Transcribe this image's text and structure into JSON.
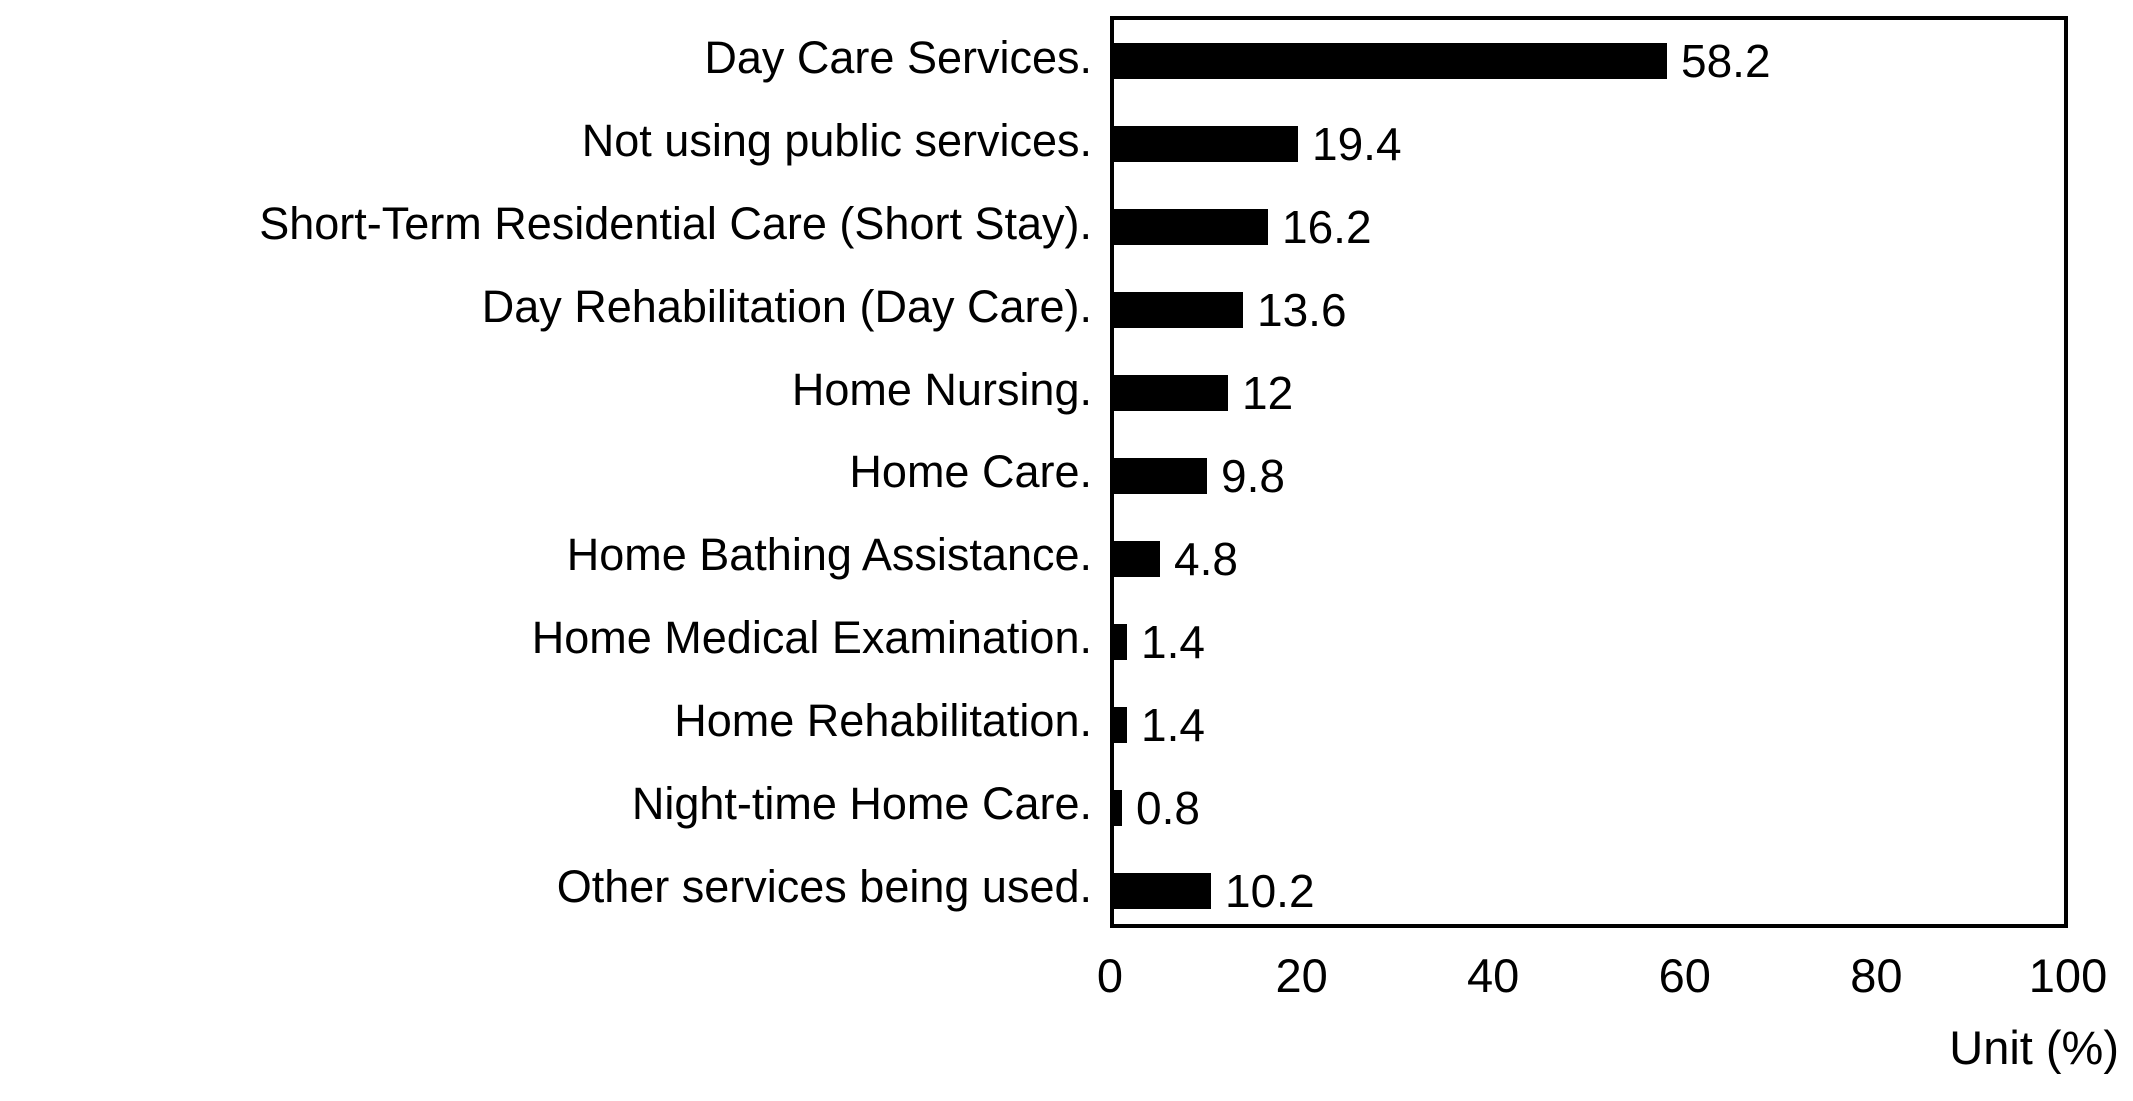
{
  "chart_data": {
    "type": "bar",
    "orientation": "horizontal",
    "title": "",
    "xlabel": "Unit (%)",
    "ylabel": "",
    "xlim": [
      0,
      100
    ],
    "x_ticks": [
      0,
      20,
      40,
      60,
      80,
      100
    ],
    "grid": false,
    "legend_position": "none",
    "bar_color": "#000000",
    "background_color": "#ffffff",
    "border_color": "#000000",
    "categories": [
      "Day Care Services.",
      "Not using public services.",
      "Short-Term Residential Care (Short Stay).",
      "Day Rehabilitation (Day Care).",
      "Home Nursing.",
      "Home Care.",
      "Home Bathing Assistance.",
      "Home Medical Examination.",
      "Home Rehabilitation.",
      "Night-time Home Care.",
      "Other services being used."
    ],
    "values": [
      58.2,
      19.4,
      16.2,
      13.6,
      12,
      9.8,
      4.8,
      1.4,
      1.4,
      0.8,
      10.2
    ],
    "value_labels": [
      "58.2",
      "19.4",
      "16.2",
      "13.6",
      "12",
      "9.8",
      "4.8",
      "1.4",
      "1.4",
      "0.8",
      "10.2"
    ]
  }
}
